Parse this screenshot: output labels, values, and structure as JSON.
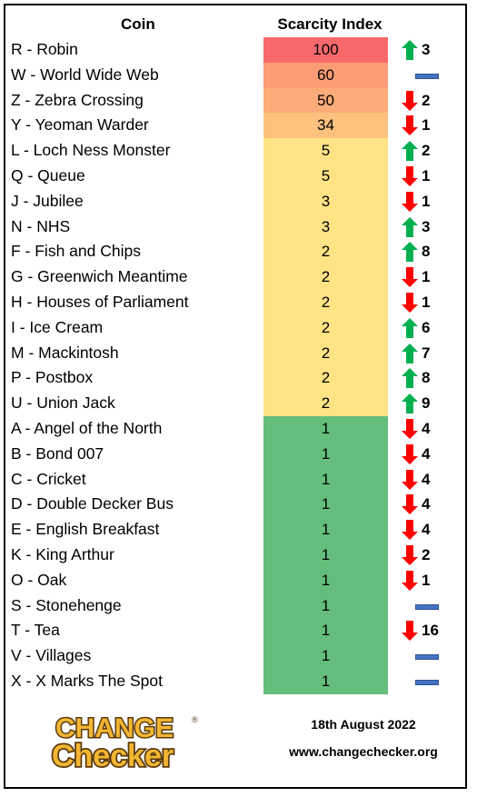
{
  "header": {
    "coin": "Coin",
    "index": "Scarcity Index"
  },
  "colors": {
    "red": "#f8696b",
    "orange_high": "#fa9c74",
    "orange_mid": "#fcac78",
    "orange_low": "#fdc17d",
    "yellow": "#ffe384",
    "green": "#63be7b",
    "up_arrow": "#00b050",
    "down_arrow": "#ff0000",
    "no_change": "#4472c4"
  },
  "rows": [
    {
      "name": "R - Robin",
      "index": "100",
      "trend": "up",
      "change": "3",
      "color": "red"
    },
    {
      "name": "W - World Wide Web",
      "index": "60",
      "trend": "flat",
      "change": "",
      "color": "orange_high"
    },
    {
      "name": "Z - Zebra Crossing",
      "index": "50",
      "trend": "down",
      "change": "2",
      "color": "orange_mid"
    },
    {
      "name": "Y - Yeoman Warder",
      "index": "34",
      "trend": "down",
      "change": "1",
      "color": "orange_low"
    },
    {
      "name": "L - Loch Ness Monster",
      "index": "5",
      "trend": "up",
      "change": "2",
      "color": "yellow"
    },
    {
      "name": "Q - Queue",
      "index": "5",
      "trend": "down",
      "change": "1",
      "color": "yellow"
    },
    {
      "name": "J - Jubilee",
      "index": "3",
      "trend": "down",
      "change": "1",
      "color": "yellow"
    },
    {
      "name": "N - NHS",
      "index": "3",
      "trend": "up",
      "change": "3",
      "color": "yellow"
    },
    {
      "name": "F - Fish and Chips",
      "index": "2",
      "trend": "up",
      "change": "8",
      "color": "yellow"
    },
    {
      "name": "G - Greenwich Meantime",
      "index": "2",
      "trend": "down",
      "change": "1",
      "color": "yellow"
    },
    {
      "name": "H - Houses of Parliament",
      "index": "2",
      "trend": "down",
      "change": "1",
      "color": "yellow"
    },
    {
      "name": "I - Ice Cream",
      "index": "2",
      "trend": "up",
      "change": "6",
      "color": "yellow"
    },
    {
      "name": "M - Mackintosh",
      "index": "2",
      "trend": "up",
      "change": "7",
      "color": "yellow"
    },
    {
      "name": "P - Postbox",
      "index": "2",
      "trend": "up",
      "change": "8",
      "color": "yellow"
    },
    {
      "name": "U - Union Jack",
      "index": "2",
      "trend": "up",
      "change": "9",
      "color": "yellow"
    },
    {
      "name": "A - Angel of the North",
      "index": "1",
      "trend": "down",
      "change": "4",
      "color": "green"
    },
    {
      "name": "B - Bond 007",
      "index": "1",
      "trend": "down",
      "change": "4",
      "color": "green"
    },
    {
      "name": "C - Cricket",
      "index": "1",
      "trend": "down",
      "change": "4",
      "color": "green"
    },
    {
      "name": "D - Double Decker Bus",
      "index": "1",
      "trend": "down",
      "change": "4",
      "color": "green"
    },
    {
      "name": "E - English Breakfast",
      "index": "1",
      "trend": "down",
      "change": "4",
      "color": "green"
    },
    {
      "name": "K - King Arthur",
      "index": "1",
      "trend": "down",
      "change": "2",
      "color": "green"
    },
    {
      "name": "O - Oak",
      "index": "1",
      "trend": "down",
      "change": "1",
      "color": "green"
    },
    {
      "name": "S - Stonehenge",
      "index": "1",
      "trend": "flat",
      "change": "",
      "color": "green"
    },
    {
      "name": "T - Tea",
      "index": "1",
      "trend": "down",
      "change": "16",
      "color": "green"
    },
    {
      "name": "V - Villages",
      "index": "1",
      "trend": "flat",
      "change": "",
      "color": "green"
    },
    {
      "name": "X - X Marks The Spot",
      "index": "1",
      "trend": "flat",
      "change": "",
      "color": "green"
    }
  ],
  "logo": {
    "line1": "CHANGE",
    "line2": "Checker",
    "mark": "®"
  },
  "footer": {
    "date": "18th August 2022",
    "url": "www.changechecker.org"
  }
}
